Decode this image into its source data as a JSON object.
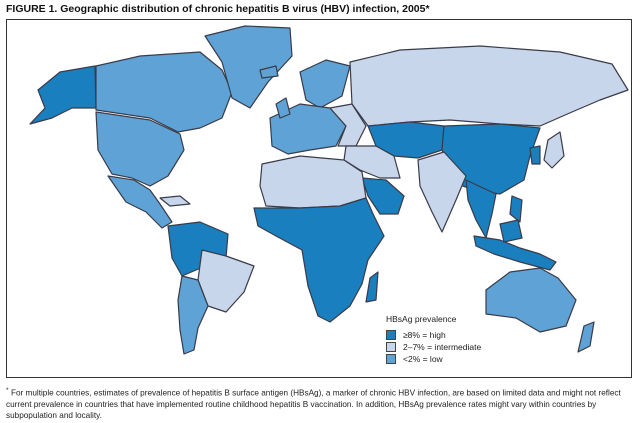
{
  "title": "FIGURE 1. Geographic distribution of chronic hepatitis B virus (HBV) infection, 2005*",
  "legend": {
    "title": "HBsAg prevalence",
    "items": [
      {
        "label": "≥8% = high",
        "color": "#1a7fbf"
      },
      {
        "label": "2–7% = intermediate",
        "color": "#c7d6eb"
      },
      {
        "label": "<2% = low",
        "color": "#5ea2d6"
      }
    ]
  },
  "footnote": {
    "marker": "*",
    "text": "For multiple countries, estimates of prevalence of hepatitis B surface antigen (HBsAg), a marker of chronic HBV infection, are based on limited data and might not reflect current prevalence in countries that have implemented routine childhood hepatitis B vaccination. In addition, HBsAg prevalence rates might vary within countries by subpopulation and locality."
  }
}
